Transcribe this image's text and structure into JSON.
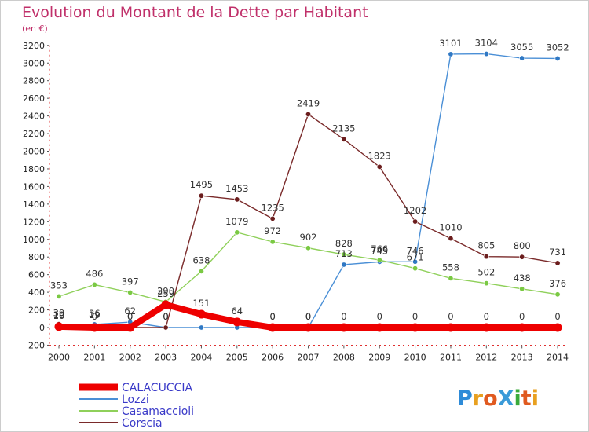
{
  "chart_data": {
    "type": "line",
    "title": "Evolution du Montant de la Dette par Habitant",
    "subtitle": "(en €)",
    "xlabel": "",
    "ylabel": "",
    "x": [
      "2000",
      "2001",
      "2002",
      "2003",
      "2004",
      "2005",
      "2006",
      "2007",
      "2008",
      "2009",
      "2010",
      "2011",
      "2012",
      "2013",
      "2014"
    ],
    "ylim": [
      -200,
      3200
    ],
    "yticks": [
      -200,
      0,
      200,
      400,
      600,
      800,
      1000,
      1200,
      1400,
      1600,
      1800,
      2000,
      2200,
      2400,
      2600,
      2800,
      3000,
      3200
    ],
    "grid": false,
    "legend_position": "bottom-left",
    "series": [
      {
        "name": "Lozzi",
        "color": "#4a8fd6",
        "point_color": "#2f78c4",
        "values": [
          19,
          36,
          62,
          0,
          0,
          0,
          0,
          0,
          713,
          745,
          746,
          3101,
          3104,
          3055,
          3052
        ],
        "labels": [
          "19",
          "36",
          "62",
          "0",
          "",
          "",
          "0",
          "0",
          "713",
          "745",
          "746",
          "3101",
          "3104",
          "3055",
          "3052"
        ]
      },
      {
        "name": "Casamaccioli",
        "color": "#8fd05a",
        "point_color": "#7ac943",
        "values": [
          353,
          486,
          397,
          290,
          638,
          1079,
          972,
          902,
          828,
          766,
          671,
          558,
          502,
          438,
          376
        ],
        "labels": [
          "353",
          "486",
          "397",
          "290",
          "638",
          "1079",
          "972",
          "902",
          "828",
          "766",
          "671",
          "558",
          "502",
          "438",
          "376"
        ]
      },
      {
        "name": "Corscia",
        "color": "#7a2a2a",
        "point_color": "#6b1d1d",
        "values": [
          39,
          19,
          0,
          0,
          1495,
          1453,
          1235,
          2419,
          2135,
          1823,
          1202,
          1010,
          805,
          800,
          731
        ],
        "labels": [
          "39",
          "19",
          "0",
          "0",
          "1495",
          "1453",
          "1235",
          "2419",
          "2135",
          "1823",
          "1202",
          "1010",
          "805",
          "800",
          "731"
        ]
      },
      {
        "name": "CALACUCCIA",
        "color": "#ee0000",
        "point_color": "#ee0000",
        "values": [
          10,
          0,
          0,
          259,
          151,
          64,
          0,
          0,
          0,
          0,
          0,
          0,
          0,
          0,
          0
        ],
        "labels": [
          "10",
          "0",
          "0",
          "259",
          "151",
          "64",
          "0",
          "0",
          "0",
          "0",
          "0",
          "0",
          "0",
          "0",
          "0"
        ]
      }
    ],
    "legend": [
      "CALACUCCIA",
      "Lozzi",
      "Casamaccioli",
      "Corscia"
    ]
  },
  "logo": {
    "text": "ProXiti",
    "letter_colors": [
      "#2e8bd8",
      "#e8a020",
      "#e05a20",
      "#3a9ad8",
      "#3aaa3a",
      "#e05a20",
      "#e8a020"
    ]
  }
}
